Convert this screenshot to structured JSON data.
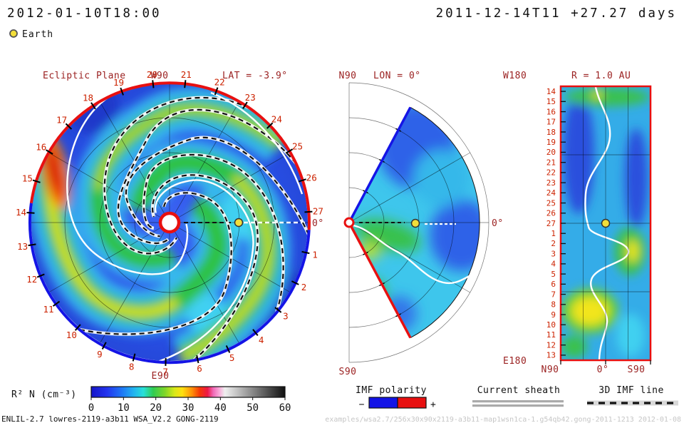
{
  "header": {
    "datetime_current": "2012-01-10T18:00",
    "datetime_range": "2011-12-14T11 +27.27 days",
    "earth_label": "Earth"
  },
  "left_panel": {
    "title": "Ecliptic Plane",
    "top_label": "W90",
    "lat_label": "LAT = -3.9°",
    "bottom_label": "E90",
    "right_label": "0°",
    "day_numbers": [
      "1",
      "2",
      "3",
      "4",
      "5",
      "6",
      "7",
      "8",
      "9",
      "10",
      "11",
      "12",
      "13",
      "14",
      "15",
      "16",
      "17",
      "18",
      "19",
      "20",
      "21",
      "22",
      "23",
      "24",
      "25",
      "26",
      "27"
    ]
  },
  "middle_panel": {
    "top_label": "N90",
    "title": "LON = 0°",
    "bottom_label": "S90",
    "right_label": "0°"
  },
  "right_panel": {
    "top_left_label": "W180",
    "title": "R = 1.0 AU",
    "bottom_left_label": "E180",
    "axis_labels": [
      "N90",
      "0°",
      "S90"
    ],
    "day_numbers": [
      "14",
      "15",
      "16",
      "17",
      "18",
      "19",
      "20",
      "21",
      "22",
      "23",
      "24",
      "25",
      "26",
      "27",
      "1",
      "2",
      "3",
      "4",
      "5",
      "6",
      "7",
      "8",
      "9",
      "10",
      "11",
      "12",
      "13"
    ]
  },
  "colorbar": {
    "label": "R² N (cm⁻³)",
    "ticks": [
      "0",
      "10",
      "20",
      "30",
      "40",
      "50",
      "60"
    ],
    "gradient": [
      [
        0,
        "#1515c8"
      ],
      [
        0.08,
        "#2233ee"
      ],
      [
        0.16,
        "#1e78f5"
      ],
      [
        0.22,
        "#22b4f0"
      ],
      [
        0.27,
        "#28e0d8"
      ],
      [
        0.32,
        "#30cc50"
      ],
      [
        0.38,
        "#7fd62a"
      ],
      [
        0.43,
        "#d8e818"
      ],
      [
        0.47,
        "#ffe010"
      ],
      [
        0.52,
        "#ff9008"
      ],
      [
        0.56,
        "#f53808"
      ],
      [
        0.6,
        "#ee1845"
      ],
      [
        0.63,
        "#f06ab8"
      ],
      [
        0.66,
        "#f8a8d8"
      ],
      [
        0.69,
        "#efefef"
      ],
      [
        0.76,
        "#bdbdbd"
      ],
      [
        0.87,
        "#6e6e6e"
      ],
      [
        1,
        "#101010"
      ]
    ]
  },
  "legends": {
    "imf_polarity": {
      "label": "IMF polarity",
      "minus": "−",
      "plus": "+"
    },
    "current_sheet": {
      "label": "Current sheath"
    },
    "imf_line": {
      "label": "3D IMF line"
    }
  },
  "footer": {
    "model_info": "ENLIL-2.7 lowres-2119-a3b11 WSA_V2.2 GONG-2119",
    "run_path": "examples/wsa2.7/256x30x90x2119-a3b11-map1wsn1ca-1.g54qb42.gong-2011-1213  2012-01-08"
  },
  "colors": {
    "polarity_positive": "#e81010",
    "polarity_negative": "#1414e6",
    "earth": "#f2de3a",
    "day_label": "#cc2200",
    "panel_label": "#9b2222"
  },
  "chart_data": [
    {
      "type": "heatmap",
      "panel": "ecliptic",
      "title": "Ecliptic Plane",
      "geometry": "polar disk, Sun at center",
      "quantity": "scaled density R² N (cm⁻³)",
      "color_scale_range": [
        0,
        60
      ],
      "slice": "LAT = -3.9°",
      "day_marks": "days 1-27 clockwise around outer boundary",
      "outer_boundary_polarity": "red (+) over top half, blue (−) over bottom half",
      "earth": {
        "longitude_deg": 0,
        "r_au": 1.0
      },
      "features": "Parker-spiral density arms (cyan/green/yellow, red enhancement at left limb), black-white dashed 3D IMF lines, white current-sheet curves"
    },
    {
      "type": "heatmap",
      "panel": "meridional",
      "title": "LON = 0°",
      "geometry": "half-disk wedge of ±60° latitude opening toward 0° longitude",
      "quantity": "scaled density R² N (cm⁻³)",
      "color_scale_range": [
        0,
        60
      ],
      "edges": "north edge blue (−), south edge red (+)",
      "earth": {
        "latitude_deg": 0,
        "r_au": 1.0
      },
      "features": "white current-sheet line near equator"
    },
    {
      "type": "heatmap",
      "panel": "sphere-slice",
      "title": "R = 1.0 AU",
      "x_axis": "latitude N90 → 0° → S90",
      "y_axis": "longitude W180 (top) → E180 (bottom)",
      "quantity": "scaled density R² N (cm⁻³)",
      "color_scale_range": [
        0,
        60
      ],
      "day_marks": "days 14-27 then 1-13 from top to bottom",
      "features": "meandering white current sheet, green/yellow density ridges, Earth at center"
    }
  ]
}
